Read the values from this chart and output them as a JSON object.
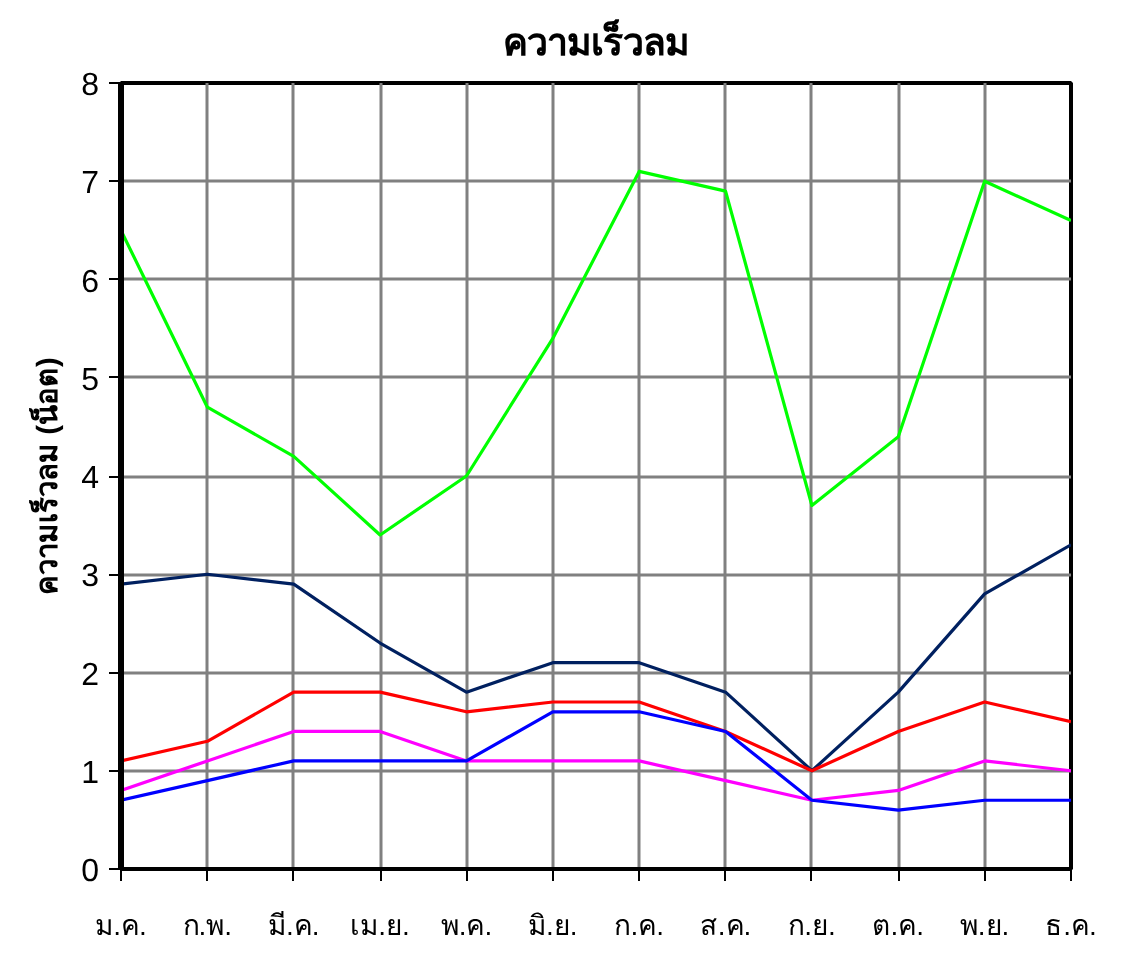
{
  "chart_data": {
    "type": "line",
    "title": "ความเร็วลม",
    "ylabel": "ความเร็วลม (น็อต)",
    "categories": [
      "ม.ค.",
      "ก.พ.",
      "มี.ค.",
      "เม.ย.",
      "พ.ค.",
      "มิ.ย.",
      "ก.ค.",
      "ส.ค.",
      "ก.ย.",
      "ต.ค.",
      "พ.ย.",
      "ธ.ค."
    ],
    "series": [
      {
        "color": "#00ff00",
        "values": [
          6.5,
          4.7,
          4.2,
          3.4,
          4.0,
          5.4,
          7.1,
          6.9,
          3.7,
          4.4,
          7.0,
          6.6
        ]
      },
      {
        "color": "#002060",
        "values": [
          2.9,
          3.0,
          2.9,
          2.3,
          1.8,
          2.1,
          2.1,
          1.8,
          1.0,
          1.8,
          2.8,
          3.3
        ]
      },
      {
        "color": "#ff0000",
        "values": [
          1.1,
          1.3,
          1.8,
          1.8,
          1.6,
          1.7,
          1.7,
          1.4,
          1.0,
          1.4,
          1.7,
          1.5
        ]
      },
      {
        "color": "#ff00ff",
        "values": [
          0.8,
          1.1,
          1.4,
          1.4,
          1.1,
          1.1,
          1.1,
          0.9,
          0.7,
          0.8,
          1.1,
          1.0
        ]
      },
      {
        "color": "#0000ff",
        "values": [
          0.7,
          0.9,
          1.1,
          1.1,
          1.1,
          1.6,
          1.6,
          1.4,
          0.7,
          0.6,
          0.7,
          0.7
        ]
      }
    ],
    "ylim": [
      0,
      8
    ],
    "yticks": [
      0,
      1,
      2,
      3,
      4,
      5,
      6,
      7,
      8
    ],
    "grid": true,
    "marker": "none",
    "line_style": "solid"
  }
}
